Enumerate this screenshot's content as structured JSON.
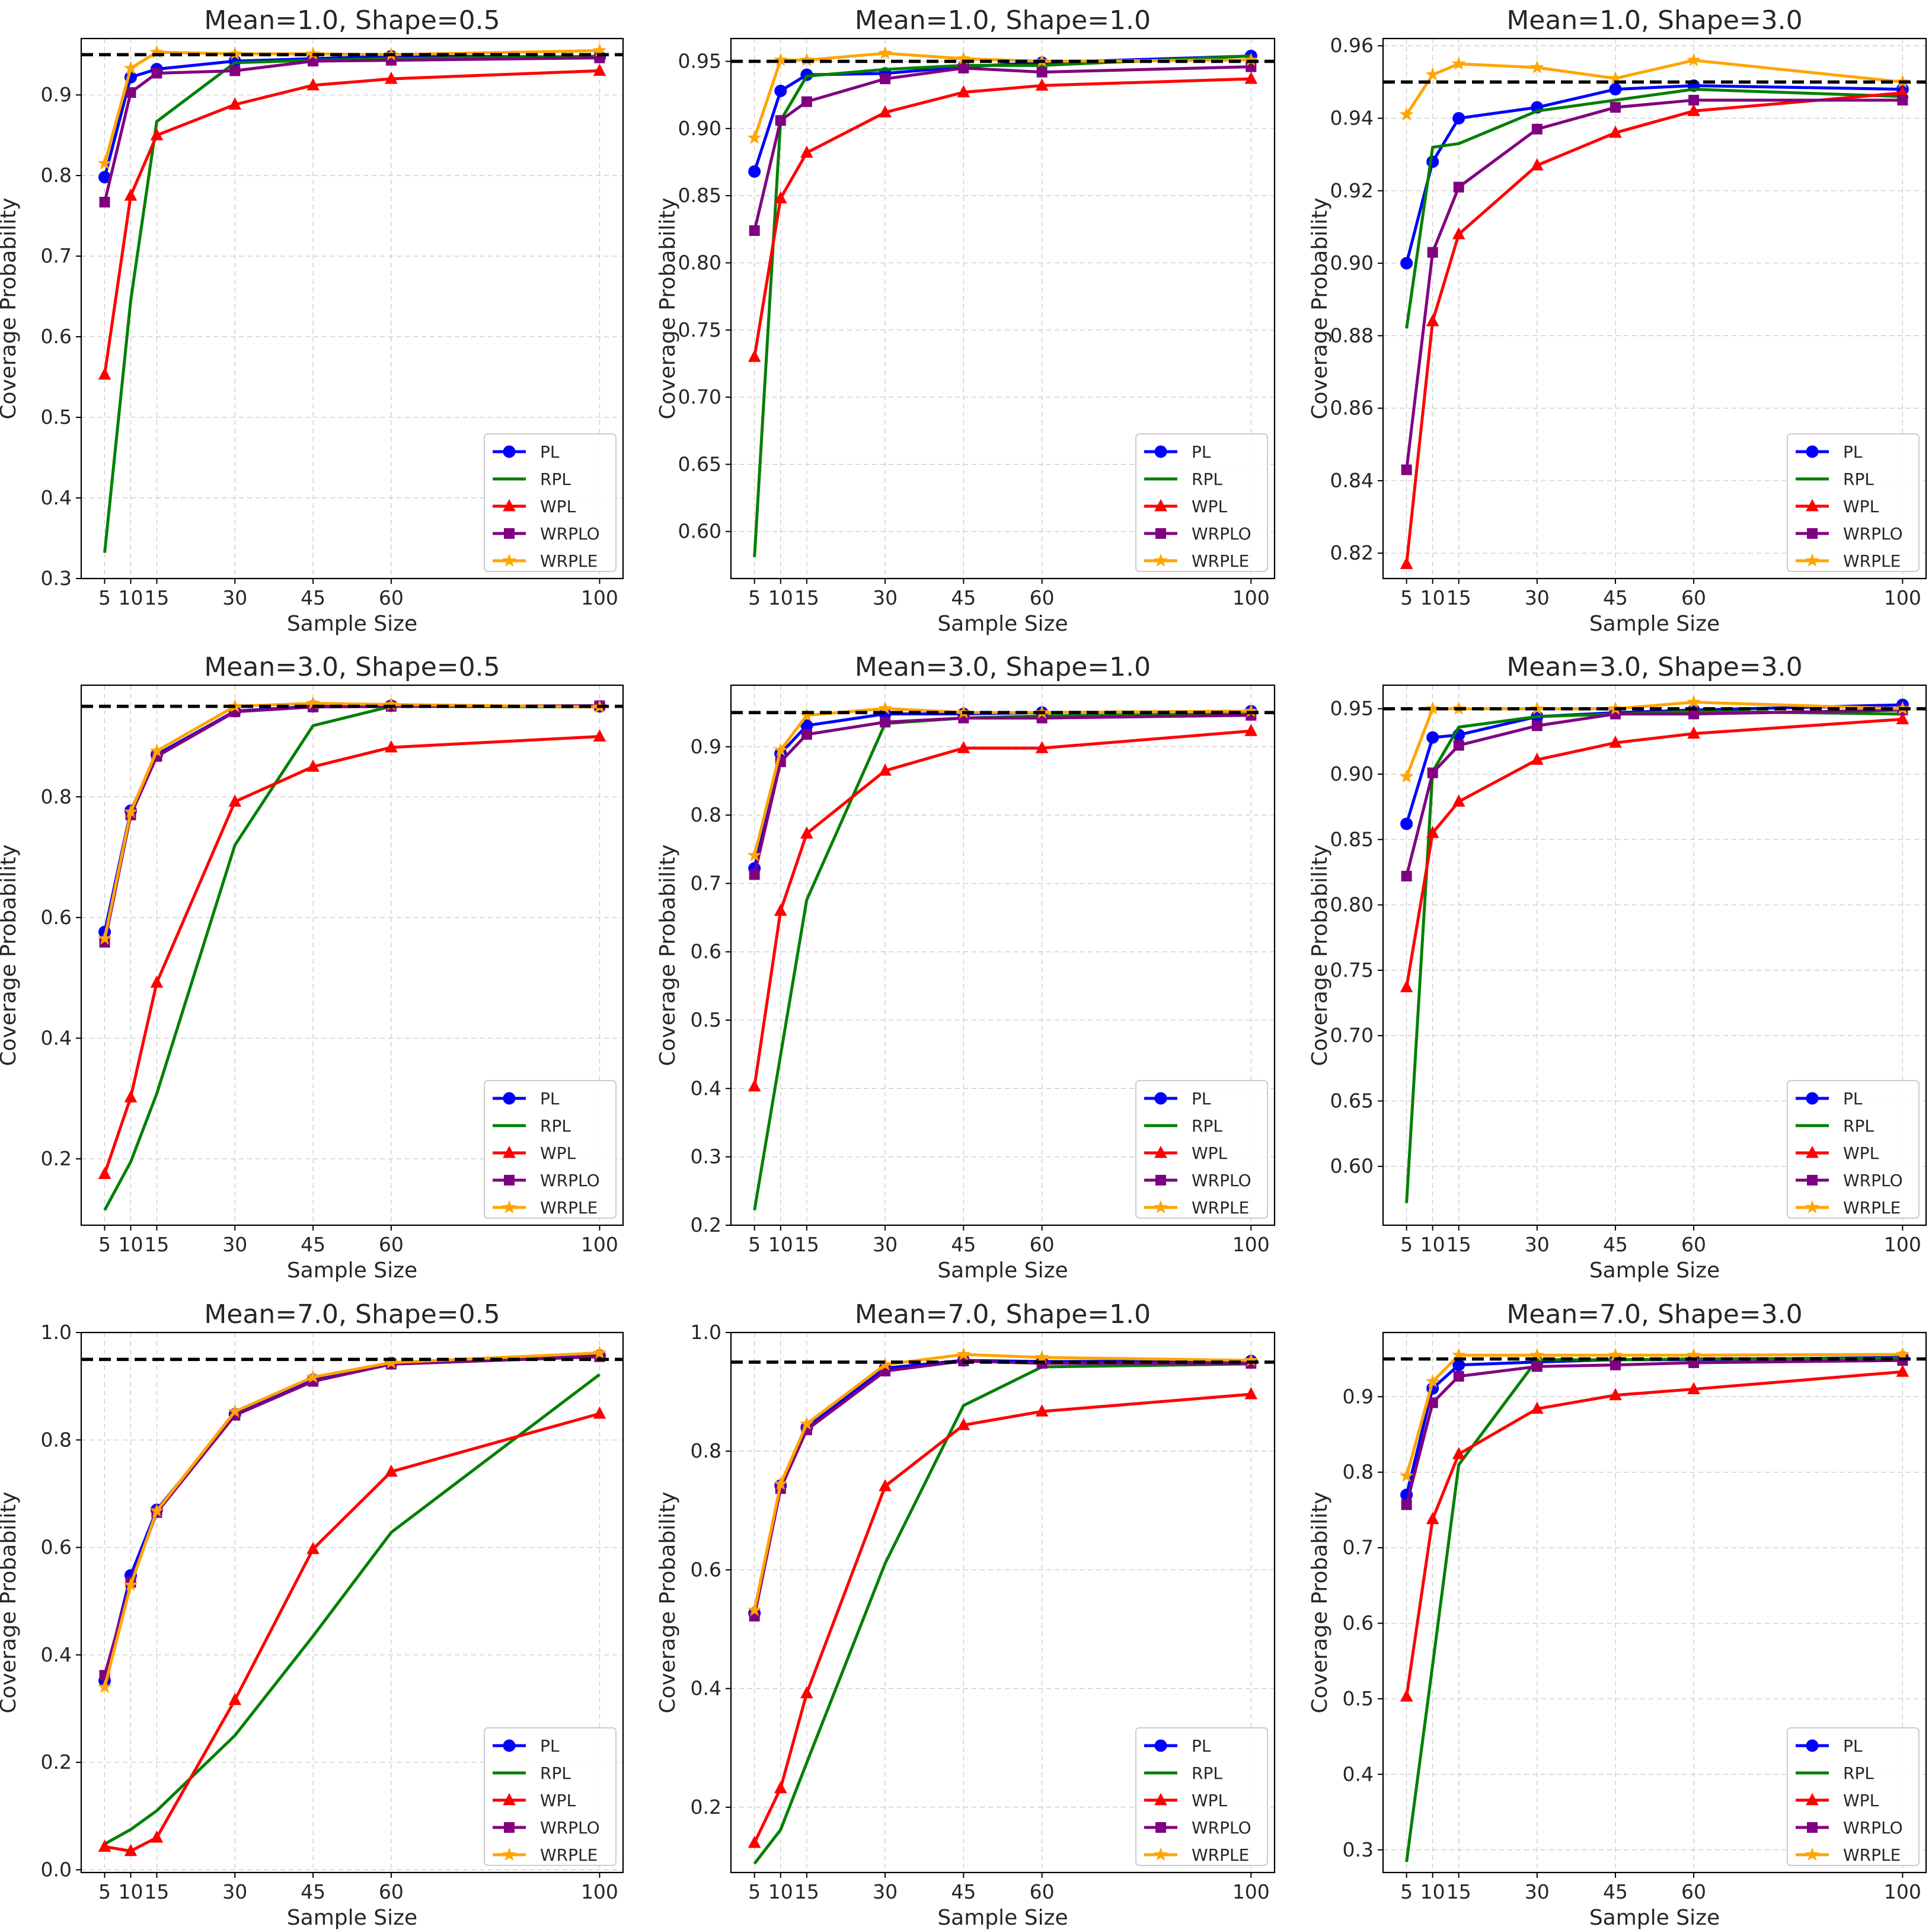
{
  "figure": {
    "target_line": 0.95,
    "series_styles": [
      {
        "name": "PL",
        "color": "#0000ff",
        "marker": "circle"
      },
      {
        "name": "RPL",
        "color": "#008000",
        "marker": "none"
      },
      {
        "name": "WPL",
        "color": "#ff0000",
        "marker": "triangle"
      },
      {
        "name": "WRPLO",
        "color": "#800080",
        "marker": "square"
      },
      {
        "name": "WRPLE",
        "color": "#ffa500",
        "marker": "star"
      }
    ],
    "target_line_style": {
      "color": "#000000",
      "dash": "dashed"
    },
    "grid": true,
    "legend_placement": "lower right"
  },
  "chart_data": [
    {
      "type": "line",
      "title": "Mean=1.0, Shape=0.5",
      "xlabel": "Sample Size",
      "ylabel": "Coverage Probability",
      "x": [
        5,
        10,
        15,
        30,
        45,
        60,
        100
      ],
      "xticks": [
        "5",
        "10",
        "15",
        "30",
        "45",
        "60",
        "100"
      ],
      "ylim": [
        0.3,
        0.97
      ],
      "yticks": [
        "0.3",
        "0.4",
        "0.5",
        "0.6",
        "0.7",
        "0.8",
        "0.9"
      ],
      "series": [
        {
          "name": "PL",
          "values": [
            0.798,
            0.922,
            0.932,
            0.942,
            0.945,
            0.948,
            0.947
          ]
        },
        {
          "name": "RPL",
          "values": [
            0.332,
            0.645,
            0.867,
            0.94,
            0.943,
            0.945,
            0.948
          ]
        },
        {
          "name": "WPL",
          "values": [
            0.553,
            0.775,
            0.85,
            0.888,
            0.912,
            0.92,
            0.93
          ]
        },
        {
          "name": "WRPLO",
          "values": [
            0.767,
            0.903,
            0.927,
            0.93,
            0.942,
            0.943,
            0.946
          ]
        },
        {
          "name": "WRPLE",
          "values": [
            0.815,
            0.933,
            0.953,
            0.951,
            0.951,
            0.95,
            0.955
          ]
        }
      ]
    },
    {
      "type": "line",
      "title": "Mean=1.0, Shape=1.0",
      "xlabel": "Sample Size",
      "ylabel": "Coverage Probability",
      "x": [
        5,
        10,
        15,
        30,
        45,
        60,
        100
      ],
      "xticks": [
        "5",
        "10",
        "15",
        "30",
        "45",
        "60",
        "100"
      ],
      "ylim": [
        0.565,
        0.967
      ],
      "yticks": [
        "0.60",
        "0.65",
        "0.70",
        "0.75",
        "0.80",
        "0.85",
        "0.90",
        "0.95"
      ],
      "series": [
        {
          "name": "PL",
          "values": [
            0.868,
            0.928,
            0.94,
            0.941,
            0.946,
            0.949,
            0.954
          ]
        },
        {
          "name": "RPL",
          "values": [
            0.581,
            0.906,
            0.939,
            0.944,
            0.947,
            0.947,
            0.954
          ]
        },
        {
          "name": "WPL",
          "values": [
            0.73,
            0.848,
            0.882,
            0.912,
            0.927,
            0.932,
            0.937
          ]
        },
        {
          "name": "WRPLO",
          "values": [
            0.824,
            0.906,
            0.92,
            0.937,
            0.945,
            0.942,
            0.946
          ]
        },
        {
          "name": "WRPLE",
          "values": [
            0.893,
            0.951,
            0.951,
            0.956,
            0.952,
            0.95,
            0.951
          ]
        }
      ]
    },
    {
      "type": "line",
      "title": "Mean=1.0, Shape=3.0",
      "xlabel": "Sample Size",
      "ylabel": "Coverage Probability",
      "x": [
        5,
        10,
        15,
        30,
        45,
        60,
        100
      ],
      "xticks": [
        "5",
        "10",
        "15",
        "30",
        "45",
        "60",
        "100"
      ],
      "ylim": [
        0.813,
        0.962
      ],
      "yticks": [
        "0.82",
        "0.84",
        "0.86",
        "0.88",
        "0.90",
        "0.92",
        "0.94",
        "0.96"
      ],
      "series": [
        {
          "name": "PL",
          "values": [
            0.9,
            0.928,
            0.94,
            0.943,
            0.948,
            0.949,
            0.948
          ]
        },
        {
          "name": "RPL",
          "values": [
            0.882,
            0.932,
            0.933,
            0.942,
            0.945,
            0.948,
            0.946
          ]
        },
        {
          "name": "WPL",
          "values": [
            0.817,
            0.884,
            0.908,
            0.927,
            0.936,
            0.942,
            0.947
          ]
        },
        {
          "name": "WRPLO",
          "values": [
            0.843,
            0.903,
            0.921,
            0.937,
            0.943,
            0.945,
            0.945
          ]
        },
        {
          "name": "WRPLE",
          "values": [
            0.941,
            0.952,
            0.955,
            0.954,
            0.951,
            0.956,
            0.95
          ]
        }
      ]
    },
    {
      "type": "line",
      "title": "Mean=3.0, Shape=0.5",
      "xlabel": "Sample Size",
      "ylabel": "Coverage Probability",
      "x": [
        5,
        10,
        15,
        30,
        45,
        60,
        100
      ],
      "xticks": [
        "5",
        "10",
        "15",
        "30",
        "45",
        "60",
        "100"
      ],
      "ylim": [
        0.09,
        0.985
      ],
      "yticks": [
        "0.2",
        "0.4",
        "0.6",
        "0.8"
      ],
      "series": [
        {
          "name": "PL",
          "values": [
            0.576,
            0.777,
            0.87,
            0.942,
            0.95,
            0.951,
            0.95
          ]
        },
        {
          "name": "RPL",
          "values": [
            0.115,
            0.195,
            0.308,
            0.72,
            0.918,
            0.95,
            0.949
          ]
        },
        {
          "name": "WPL",
          "values": [
            0.175,
            0.302,
            0.492,
            0.792,
            0.85,
            0.882,
            0.9
          ]
        },
        {
          "name": "WRPLO",
          "values": [
            0.559,
            0.77,
            0.867,
            0.941,
            0.949,
            0.95,
            0.951
          ]
        },
        {
          "name": "WRPLE",
          "values": [
            0.565,
            0.775,
            0.876,
            0.95,
            0.955,
            0.953,
            0.949
          ]
        }
      ]
    },
    {
      "type": "line",
      "title": "Mean=3.0, Shape=1.0",
      "xlabel": "Sample Size",
      "ylabel": "Coverage Probability",
      "x": [
        5,
        10,
        15,
        30,
        45,
        60,
        100
      ],
      "xticks": [
        "5",
        "10",
        "15",
        "30",
        "45",
        "60",
        "100"
      ],
      "ylim": [
        0.2,
        0.99
      ],
      "yticks": [
        "0.2",
        "0.3",
        "0.4",
        "0.5",
        "0.6",
        "0.7",
        "0.8",
        "0.9"
      ],
      "series": [
        {
          "name": "PL",
          "values": [
            0.722,
            0.89,
            0.931,
            0.948,
            0.948,
            0.95,
            0.952
          ]
        },
        {
          "name": "RPL",
          "values": [
            0.222,
            0.449,
            0.676,
            0.934,
            0.942,
            0.945,
            0.948
          ]
        },
        {
          "name": "WPL",
          "values": [
            0.403,
            0.66,
            0.773,
            0.865,
            0.898,
            0.898,
            0.923
          ]
        },
        {
          "name": "WRPLO",
          "values": [
            0.713,
            0.878,
            0.918,
            0.936,
            0.942,
            0.942,
            0.946
          ]
        },
        {
          "name": "WRPLE",
          "values": [
            0.741,
            0.895,
            0.946,
            0.956,
            0.95,
            0.95,
            0.952
          ]
        }
      ]
    },
    {
      "type": "line",
      "title": "Mean=3.0, Shape=3.0",
      "xlabel": "Sample Size",
      "ylabel": "Coverage Probability",
      "x": [
        5,
        10,
        15,
        30,
        45,
        60,
        100
      ],
      "xticks": [
        "5",
        "10",
        "15",
        "30",
        "45",
        "60",
        "100"
      ],
      "ylim": [
        0.555,
        0.968
      ],
      "yticks": [
        "0.60",
        "0.65",
        "0.70",
        "0.75",
        "0.80",
        "0.85",
        "0.90",
        "0.95"
      ],
      "series": [
        {
          "name": "PL",
          "values": [
            0.862,
            0.928,
            0.93,
            0.944,
            0.947,
            0.949,
            0.953
          ]
        },
        {
          "name": "RPL",
          "values": [
            0.572,
            0.902,
            0.936,
            0.944,
            0.946,
            0.948,
            0.946
          ]
        },
        {
          "name": "WPL",
          "values": [
            0.737,
            0.855,
            0.879,
            0.911,
            0.924,
            0.931,
            0.942
          ]
        },
        {
          "name": "WRPLO",
          "values": [
            0.822,
            0.901,
            0.922,
            0.937,
            0.946,
            0.946,
            0.949
          ]
        },
        {
          "name": "WRPLE",
          "values": [
            0.898,
            0.95,
            0.95,
            0.95,
            0.95,
            0.955,
            0.95
          ]
        }
      ]
    },
    {
      "type": "line",
      "title": "Mean=7.0, Shape=0.5",
      "xlabel": "Sample Size",
      "ylabel": "Coverage Probability",
      "x": [
        5,
        10,
        15,
        30,
        45,
        60,
        100
      ],
      "xticks": [
        "5",
        "10",
        "15",
        "30",
        "45",
        "60",
        "100"
      ],
      "ylim": [
        -0.005,
        1.0
      ],
      "yticks": [
        "0.0",
        "0.2",
        "0.4",
        "0.6",
        "0.8",
        "1.0"
      ],
      "series": [
        {
          "name": "PL",
          "values": [
            0.352,
            0.548,
            0.67,
            0.848,
            0.912,
            0.943,
            0.957
          ]
        },
        {
          "name": "RPL",
          "values": [
            0.048,
            0.075,
            0.11,
            0.25,
            0.435,
            0.628,
            0.922
          ]
        },
        {
          "name": "WPL",
          "values": [
            0.043,
            0.035,
            0.06,
            0.316,
            0.597,
            0.741,
            0.849
          ]
        },
        {
          "name": "WRPLO",
          "values": [
            0.362,
            0.535,
            0.665,
            0.846,
            0.909,
            0.941,
            0.955
          ]
        },
        {
          "name": "WRPLE",
          "values": [
            0.34,
            0.53,
            0.668,
            0.853,
            0.917,
            0.944,
            0.962
          ]
        }
      ]
    },
    {
      "type": "line",
      "title": "Mean=7.0, Shape=1.0",
      "xlabel": "Sample Size",
      "ylabel": "Coverage Probability",
      "x": [
        5,
        10,
        15,
        30,
        45,
        60,
        100
      ],
      "xticks": [
        "5",
        "10",
        "15",
        "30",
        "45",
        "60",
        "100"
      ],
      "ylim": [
        0.09,
        1.0
      ],
      "yticks": [
        "0.2",
        "0.4",
        "0.6",
        "0.8",
        "1.0"
      ],
      "series": [
        {
          "name": "PL",
          "values": [
            0.527,
            0.742,
            0.84,
            0.94,
            0.953,
            0.951,
            0.952
          ]
        },
        {
          "name": "RPL",
          "values": [
            0.105,
            0.162,
            0.275,
            0.611,
            0.877,
            0.942,
            0.947
          ]
        },
        {
          "name": "WPL",
          "values": [
            0.14,
            0.232,
            0.392,
            0.741,
            0.844,
            0.867,
            0.896
          ]
        },
        {
          "name": "WRPLO",
          "values": [
            0.522,
            0.737,
            0.836,
            0.935,
            0.952,
            0.948,
            0.948
          ]
        },
        {
          "name": "WRPLE",
          "values": [
            0.532,
            0.745,
            0.846,
            0.946,
            0.963,
            0.958,
            0.953
          ]
        }
      ]
    },
    {
      "type": "line",
      "title": "Mean=7.0, Shape=3.0",
      "xlabel": "Sample Size",
      "ylabel": "Coverage Probability",
      "x": [
        5,
        10,
        15,
        30,
        45,
        60,
        100
      ],
      "xticks": [
        "5",
        "10",
        "15",
        "30",
        "45",
        "60",
        "100"
      ],
      "ylim": [
        0.27,
        0.985
      ],
      "yticks": [
        "0.3",
        "0.4",
        "0.5",
        "0.6",
        "0.7",
        "0.8",
        "0.9"
      ],
      "series": [
        {
          "name": "PL",
          "values": [
            0.77,
            0.911,
            0.942,
            0.946,
            0.949,
            0.949,
            0.952
          ]
        },
        {
          "name": "RPL",
          "values": [
            0.284,
            0.545,
            0.81,
            0.949,
            0.949,
            0.95,
            0.951
          ]
        },
        {
          "name": "WPL",
          "values": [
            0.503,
            0.738,
            0.824,
            0.884,
            0.902,
            0.91,
            0.933
          ]
        },
        {
          "name": "WRPLO",
          "values": [
            0.757,
            0.892,
            0.927,
            0.94,
            0.942,
            0.945,
            0.948
          ]
        },
        {
          "name": "WRPLE",
          "values": [
            0.795,
            0.92,
            0.955,
            0.955,
            0.955,
            0.955,
            0.956
          ]
        }
      ]
    }
  ]
}
